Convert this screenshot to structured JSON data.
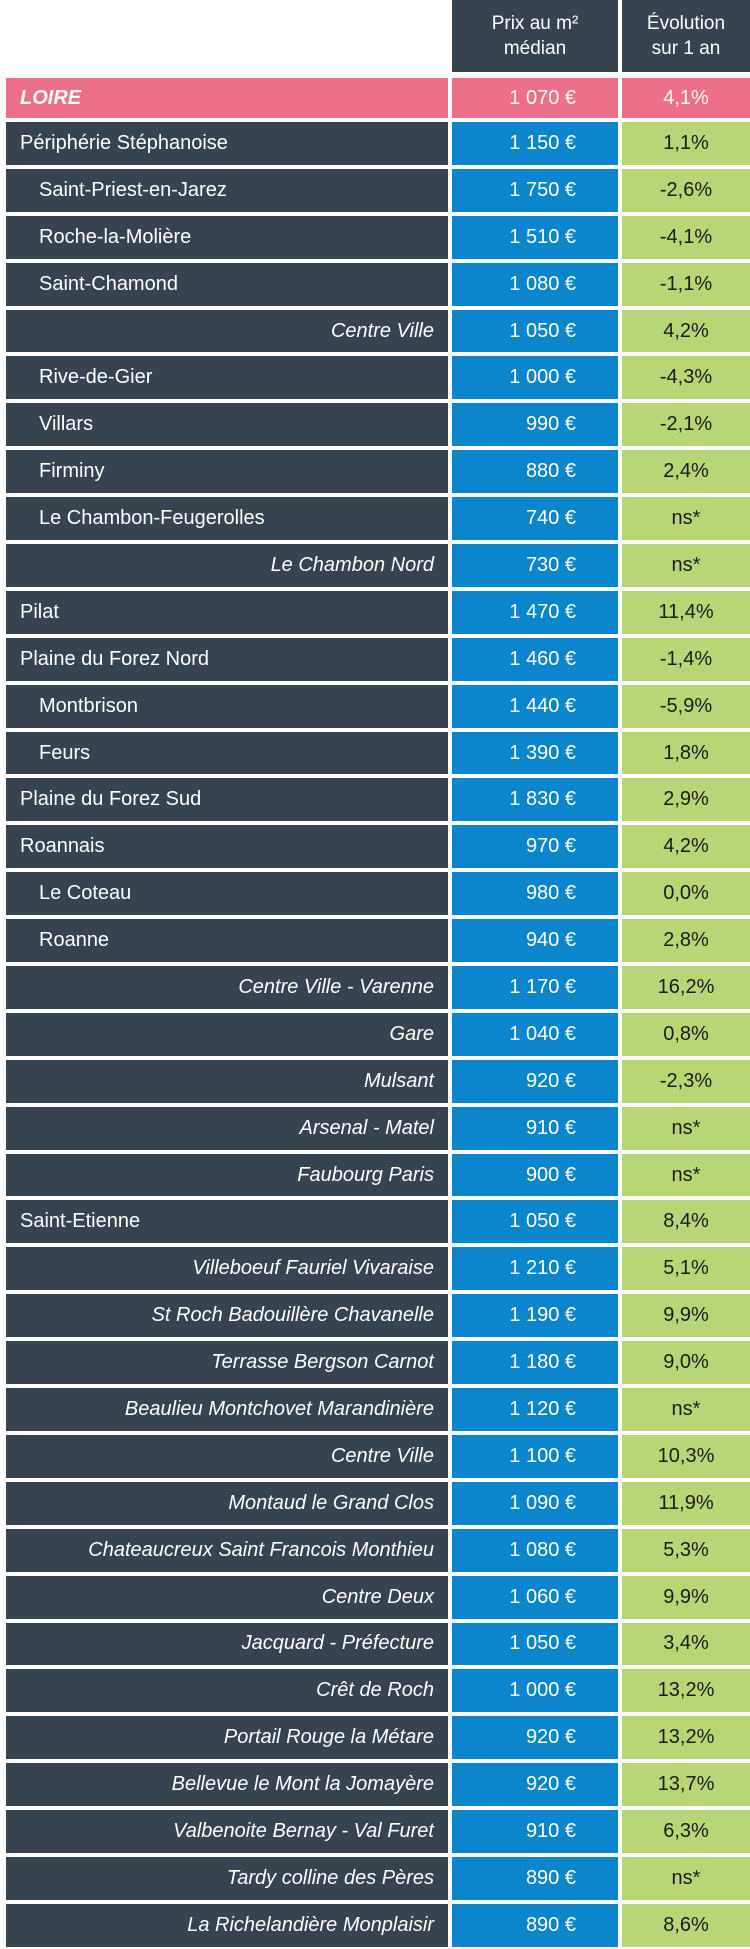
{
  "header": {
    "price_line1": "Prix au m²",
    "price_line2": "médian",
    "evo_line1": "Évolution",
    "evo_line2": "sur 1 an"
  },
  "summary": {
    "name": "LOIRE",
    "price": "1 070 €",
    "evolution": "4,1%"
  },
  "colors": {
    "name_bg": "#37444f",
    "price_bg": "#0b85cc",
    "evolution_bg": "#b9d677",
    "highlight_bg": "#ec7089"
  },
  "rows": [
    {
      "name": "Périphérie Stéphanoise",
      "price": "1 150 €",
      "evolution": "1,1%",
      "style": "lvl0"
    },
    {
      "name": "Saint-Priest-en-Jarez",
      "price": "1 750 €",
      "evolution": "-2,6%",
      "style": "lvl1"
    },
    {
      "name": "Roche-la-Molière",
      "price": "1 510 €",
      "evolution": "-4,1%",
      "style": "lvl1"
    },
    {
      "name": "Saint-Chamond",
      "price": "1 080 €",
      "evolution": "-1,1%",
      "style": "lvl1"
    },
    {
      "name": "Centre Ville",
      "price": "1 050 €",
      "evolution": "4,2%",
      "style": "it"
    },
    {
      "name": "Rive-de-Gier",
      "price": "1 000 €",
      "evolution": "-4,3%",
      "style": "lvl1"
    },
    {
      "name": "Villars",
      "price": "990 €",
      "evolution": "-2,1%",
      "style": "lvl1"
    },
    {
      "name": "Firminy",
      "price": "880 €",
      "evolution": "2,4%",
      "style": "lvl1"
    },
    {
      "name": "Le Chambon-Feugerolles",
      "price": "740 €",
      "evolution": "ns*",
      "style": "lvl1"
    },
    {
      "name": "Le Chambon Nord",
      "price": "730 €",
      "evolution": "ns*",
      "style": "it"
    },
    {
      "name": "Pilat",
      "price": "1 470 €",
      "evolution": "11,4%",
      "style": "lvl0"
    },
    {
      "name": "Plaine du Forez Nord",
      "price": "1 460 €",
      "evolution": "-1,4%",
      "style": "lvl0"
    },
    {
      "name": "Montbrison",
      "price": "1 440 €",
      "evolution": "-5,9%",
      "style": "lvl1"
    },
    {
      "name": "Feurs",
      "price": "1 390 €",
      "evolution": "1,8%",
      "style": "lvl1"
    },
    {
      "name": "Plaine du Forez Sud",
      "price": "1 830 €",
      "evolution": "2,9%",
      "style": "lvl0"
    },
    {
      "name": "Roannais",
      "price": "970 €",
      "evolution": "4,2%",
      "style": "lvl0"
    },
    {
      "name": "Le Coteau",
      "price": "980 €",
      "evolution": "0,0%",
      "style": "lvl1"
    },
    {
      "name": "Roanne",
      "price": "940 €",
      "evolution": "2,8%",
      "style": "lvl1"
    },
    {
      "name": "Centre Ville - Varenne",
      "price": "1 170 €",
      "evolution": "16,2%",
      "style": "it"
    },
    {
      "name": "Gare",
      "price": "1 040 €",
      "evolution": "0,8%",
      "style": "it"
    },
    {
      "name": "Mulsant",
      "price": "920 €",
      "evolution": "-2,3%",
      "style": "it"
    },
    {
      "name": "Arsenal - Matel",
      "price": "910 €",
      "evolution": "ns*",
      "style": "it"
    },
    {
      "name": "Faubourg Paris",
      "price": "900 €",
      "evolution": "ns*",
      "style": "it"
    },
    {
      "name": "Saint-Etienne",
      "price": "1 050 €",
      "evolution": "8,4%",
      "style": "lvl0"
    },
    {
      "name": "Villeboeuf Fauriel Vivaraise",
      "price": "1 210 €",
      "evolution": "5,1%",
      "style": "it"
    },
    {
      "name": "St Roch Badouillère Chavanelle",
      "price": "1 190 €",
      "evolution": "9,9%",
      "style": "it"
    },
    {
      "name": "Terrasse Bergson Carnot",
      "price": "1 180 €",
      "evolution": "9,0%",
      "style": "it"
    },
    {
      "name": "Beaulieu Montchovet Marandinière",
      "price": "1 120 €",
      "evolution": "ns*",
      "style": "it"
    },
    {
      "name": "Centre Ville",
      "price": "1 100 €",
      "evolution": "10,3%",
      "style": "it"
    },
    {
      "name": "Montaud le Grand Clos",
      "price": "1 090 €",
      "evolution": "11,9%",
      "style": "it"
    },
    {
      "name": "Chateaucreux Saint Francois Monthieu",
      "price": "1 080 €",
      "evolution": "5,3%",
      "style": "it"
    },
    {
      "name": "Centre Deux",
      "price": "1 060 €",
      "evolution": "9,9%",
      "style": "it"
    },
    {
      "name": "Jacquard - Préfecture",
      "price": "1 050 €",
      "evolution": "3,4%",
      "style": "it"
    },
    {
      "name": "Crêt de Roch",
      "price": "1 000 €",
      "evolution": "13,2%",
      "style": "it"
    },
    {
      "name": "Portail Rouge la Métare",
      "price": "920 €",
      "evolution": "13,2%",
      "style": "it"
    },
    {
      "name": "Bellevue le Mont la Jomayère",
      "price": "920 €",
      "evolution": "13,7%",
      "style": "it"
    },
    {
      "name": "Valbenoite Bernay - Val Furet",
      "price": "910 €",
      "evolution": "6,3%",
      "style": "it"
    },
    {
      "name": "Tardy colline des Pères",
      "price": "890 €",
      "evolution": "ns*",
      "style": "it"
    },
    {
      "name": "La Richelandière Monplaisir",
      "price": "890 €",
      "evolution": "8,6%",
      "style": "it"
    }
  ]
}
